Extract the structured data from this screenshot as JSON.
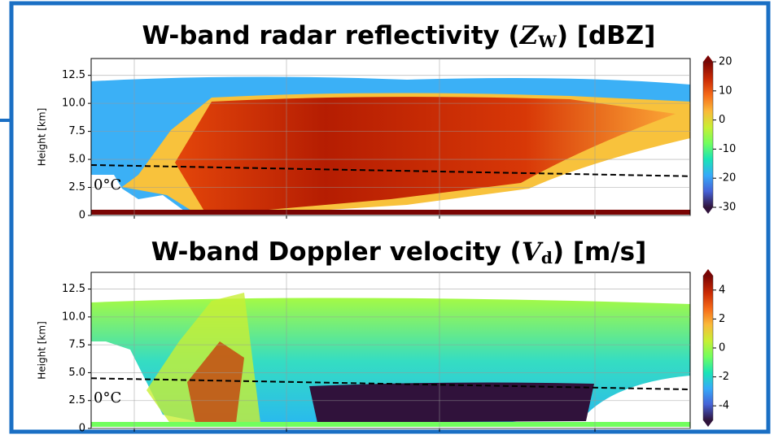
{
  "chart_data": [
    {
      "type": "heatmap",
      "title_parts": [
        "W-band radar reflectivity (",
        "Z",
        "W",
        ") [dBZ]"
      ],
      "y_label": "Height [km]",
      "ylim": [
        0,
        14
      ],
      "yticks": [
        0.0,
        {
          "value": 2.5,
          "label": "2.5"
        },
        {
          "value": 5.0,
          "label": "5.0"
        },
        {
          "value": 7.5,
          "label": "7.5"
        },
        {
          "value": 10.0,
          "label": "10.0"
        },
        {
          "value": 12.5,
          "label": "12.5"
        }
      ],
      "clim": [
        -30,
        20
      ],
      "cticks": [
        -30,
        -20,
        -10,
        0,
        10,
        20
      ],
      "annotation": "0°C",
      "grid": true
    },
    {
      "type": "heatmap",
      "title_parts": [
        "W-band Doppler velocity (",
        "V",
        "d",
        ") [m/s]"
      ],
      "y_label": "Height [km]",
      "ylim": [
        0,
        14
      ],
      "yticks": [
        0.0,
        {
          "value": 2.5,
          "label": "2.5"
        },
        {
          "value": 5.0,
          "label": "5.0"
        },
        {
          "value": 7.5,
          "label": "7.5"
        },
        {
          "value": 10.0,
          "label": "10.0"
        },
        {
          "value": 12.5,
          "label": "12.5"
        }
      ],
      "clim": [
        -5,
        5
      ],
      "cticks": [
        -4,
        -2,
        0,
        2,
        4
      ],
      "annotation": "0°C",
      "grid": true
    }
  ]
}
